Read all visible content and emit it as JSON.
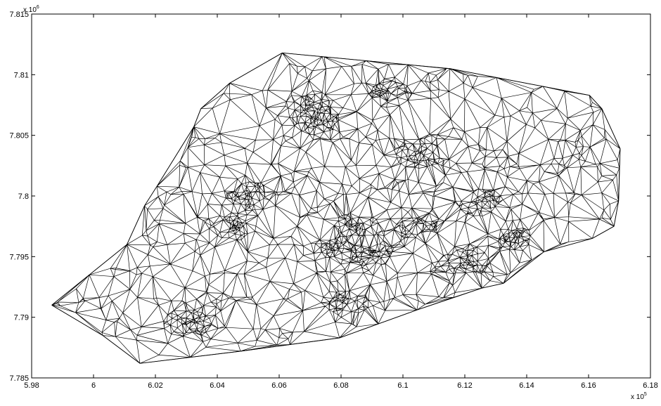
{
  "chart_data": {
    "type": "mesh",
    "x_scale_label": "x 10",
    "x_scale_exponent": "5",
    "y_scale_label": "x 10",
    "y_scale_exponent": "6",
    "xlim": [
      5.98,
      6.18
    ],
    "ylim": [
      7.785,
      7.815
    ],
    "x_ticks": [
      {
        "value": 5.98,
        "label": "5.98"
      },
      {
        "value": 6.0,
        "label": "6"
      },
      {
        "value": 6.02,
        "label": "6.02"
      },
      {
        "value": 6.04,
        "label": "6.04"
      },
      {
        "value": 6.06,
        "label": "6.06"
      },
      {
        "value": 6.08,
        "label": "6.08"
      },
      {
        "value": 6.1,
        "label": "6.1"
      },
      {
        "value": 6.12,
        "label": "6.12"
      },
      {
        "value": 6.14,
        "label": "6.14"
      },
      {
        "value": 6.16,
        "label": "6.16"
      },
      {
        "value": 6.18,
        "label": "6.18"
      }
    ],
    "y_ticks": [
      {
        "value": 7.785,
        "label": "7.785"
      },
      {
        "value": 7.79,
        "label": "7.79"
      },
      {
        "value": 7.795,
        "label": "7.795"
      },
      {
        "value": 7.8,
        "label": "7.8"
      },
      {
        "value": 7.805,
        "label": "7.805"
      },
      {
        "value": 7.81,
        "label": "7.81"
      },
      {
        "value": 7.815,
        "label": "7.815"
      }
    ],
    "hull": [
      [
        5.9865,
        7.791
      ],
      [
        6.003,
        7.7885
      ],
      [
        6.015,
        7.7862
      ],
      [
        6.0475,
        7.7872
      ],
      [
        6.0795,
        7.7883
      ],
      [
        6.1045,
        7.7906
      ],
      [
        6.1255,
        7.7924
      ],
      [
        6.1325,
        7.7928
      ],
      [
        6.1456,
        7.7954
      ],
      [
        6.1612,
        7.7965
      ],
      [
        6.1682,
        7.7975
      ],
      [
        6.1697,
        7.7996
      ],
      [
        6.1702,
        7.8039
      ],
      [
        6.1643,
        7.8072
      ],
      [
        6.1603,
        7.8083
      ],
      [
        6.1152,
        7.8105
      ],
      [
        6.061,
        7.8118
      ],
      [
        6.044,
        7.8093
      ],
      [
        6.0347,
        7.8072
      ],
      [
        6.0324,
        7.8057
      ],
      [
        6.0205,
        7.8008
      ],
      [
        6.0165,
        7.7992
      ],
      [
        6.0108,
        7.796
      ],
      [
        5.9865,
        7.791
      ]
    ],
    "dense_clusters": [
      {
        "x": 6.072,
        "y": 7.8062
      },
      {
        "x": 6.07,
        "y": 7.8075
      },
      {
        "x": 6.05,
        "y": 7.8
      },
      {
        "x": 6.085,
        "y": 7.7975
      },
      {
        "x": 6.078,
        "y": 7.7955
      },
      {
        "x": 6.09,
        "y": 7.7953
      },
      {
        "x": 6.12,
        "y": 7.7945
      },
      {
        "x": 6.125,
        "y": 7.7995
      },
      {
        "x": 6.105,
        "y": 7.8035
      },
      {
        "x": 6.081,
        "y": 7.7912
      },
      {
        "x": 6.03,
        "y": 7.7895
      },
      {
        "x": 6.095,
        "y": 7.8085
      },
      {
        "x": 6.105,
        "y": 7.7975
      },
      {
        "x": 6.045,
        "y": 7.7975
      },
      {
        "x": 6.135,
        "y": 7.7965
      }
    ],
    "grid": false,
    "line_color": "#000000",
    "background": "#ffffff"
  }
}
